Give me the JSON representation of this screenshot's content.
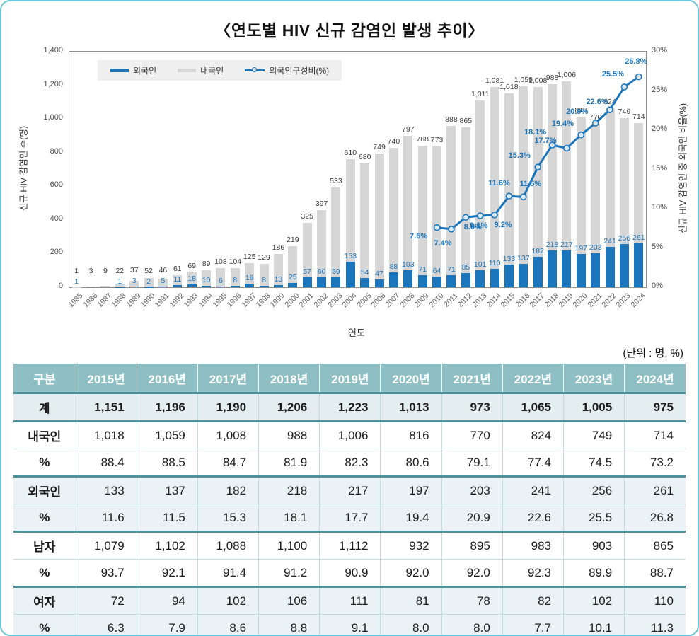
{
  "page": {
    "title": "〈연도별 HIV 신규 감염인 발생 추이〉",
    "unit_note": "(단위 : 명, %)"
  },
  "chart_data": {
    "type": "bar",
    "subtype": "stacked-bar-with-line",
    "title": "〈연도별 HIV 신규 감염인 발생 추이〉",
    "xlabel": "연도",
    "ylabel_left": "신규 HIV 감염인 수(명)",
    "ylabel_right": "신규 HIV 감염인 중 외국인 비율(%)",
    "ylim_left": [
      0,
      1400
    ],
    "ylim_right_pct": [
      0,
      30
    ],
    "yticks_left": [
      0,
      200,
      400,
      600,
      800,
      1000,
      1200,
      1400
    ],
    "yticks_right_pct": [
      0,
      5,
      10,
      15,
      20,
      25,
      30
    ],
    "grid": false,
    "legend": [
      "외국인",
      "내국인",
      "외국인구성비(%)"
    ],
    "legend_position": "top-left-inside",
    "categories": [
      "1985",
      "1986",
      "1987",
      "1988",
      "1989",
      "1990",
      "1991",
      "1992",
      "1993",
      "1994",
      "1995",
      "1996",
      "1997",
      "1998",
      "1999",
      "2000",
      "2001",
      "2002",
      "2003",
      "2004",
      "2005",
      "2006",
      "2007",
      "2008",
      "2009",
      "2010",
      "2011",
      "2012",
      "2013",
      "2014",
      "2015",
      "2016",
      "2017",
      "2018",
      "2019",
      "2020",
      "2021",
      "2022",
      "2023",
      "2024"
    ],
    "series": [
      {
        "name": "외국인",
        "type": "bar",
        "stack_order": 0,
        "color": "#1b75bb",
        "values": [
          1,
          null,
          null,
          1,
          3,
          2,
          5,
          11,
          18,
          10,
          6,
          8,
          19,
          8,
          13,
          25,
          57,
          60,
          59,
          153,
          54,
          47,
          88,
          103,
          71,
          64,
          71,
          85,
          101,
          110,
          133,
          137,
          182,
          218,
          217,
          197,
          203,
          241,
          256,
          261
        ]
      },
      {
        "name": "내국인",
        "type": "bar",
        "stack_order": 1,
        "color": "#d6d6d6",
        "values": [
          1,
          3,
          9,
          22,
          37,
          52,
          46,
          61,
          69,
          89,
          108,
          104,
          125,
          129,
          186,
          219,
          325,
          397,
          533,
          610,
          680,
          749,
          740,
          797,
          768,
          773,
          888,
          865,
          1011,
          1081,
          1018,
          1059,
          1008,
          988,
          1006,
          816,
          770,
          824,
          749,
          714
        ]
      },
      {
        "name": "외국인구성비(%)",
        "type": "line",
        "axis": "right",
        "color": "#1b75bb",
        "values": [
          null,
          null,
          null,
          null,
          null,
          null,
          null,
          null,
          null,
          null,
          null,
          null,
          null,
          null,
          null,
          null,
          null,
          null,
          null,
          null,
          null,
          null,
          null,
          null,
          null,
          7.6,
          7.4,
          8.9,
          9.1,
          9.2,
          11.6,
          11.5,
          15.3,
          18.1,
          17.7,
          19.4,
          20.9,
          22.6,
          25.5,
          26.8
        ]
      }
    ]
  },
  "table": {
    "columns": [
      "구분",
      "2015년",
      "2016년",
      "2017년",
      "2018년",
      "2019년",
      "2020년",
      "2021년",
      "2022년",
      "2023년",
      "2024년"
    ],
    "rows": [
      {
        "label": "계",
        "values": [
          "1,151",
          "1,196",
          "1,190",
          "1,206",
          "1,223",
          "1,013",
          "973",
          "1,065",
          "1,005",
          "975"
        ]
      },
      {
        "label": "내국인",
        "values": [
          "1,018",
          "1,059",
          "1,008",
          "988",
          "1,006",
          "816",
          "770",
          "824",
          "749",
          "714"
        ]
      },
      {
        "label": "%",
        "values": [
          "88.4",
          "88.5",
          "84.7",
          "81.9",
          "82.3",
          "80.6",
          "79.1",
          "77.4",
          "74.5",
          "73.2"
        ]
      },
      {
        "label": "외국인",
        "values": [
          "133",
          "137",
          "182",
          "218",
          "217",
          "197",
          "203",
          "241",
          "256",
          "261"
        ]
      },
      {
        "label": "%",
        "values": [
          "11.6",
          "11.5",
          "15.3",
          "18.1",
          "17.7",
          "19.4",
          "20.9",
          "22.6",
          "25.5",
          "26.8"
        ]
      },
      {
        "label": "남자",
        "values": [
          "1,079",
          "1,102",
          "1,088",
          "1,100",
          "1,112",
          "932",
          "895",
          "983",
          "903",
          "865"
        ]
      },
      {
        "label": "%",
        "values": [
          "93.7",
          "92.1",
          "91.4",
          "91.2",
          "90.9",
          "92.0",
          "92.0",
          "92.3",
          "89.9",
          "88.7"
        ]
      },
      {
        "label": "여자",
        "values": [
          "72",
          "94",
          "102",
          "106",
          "111",
          "81",
          "78",
          "82",
          "102",
          "110"
        ]
      },
      {
        "label": "%",
        "values": [
          "6.3",
          "7.9",
          "8.6",
          "8.8",
          "9.1",
          "8.0",
          "8.0",
          "7.7",
          "10.1",
          "11.3"
        ]
      }
    ]
  },
  "colors": {
    "bar_foreign": "#1b75bb",
    "bar_korean": "#d6d6d6",
    "ratio_line": "#1b75bb",
    "marker_fill": "#d9e8f7",
    "table_header_bg": "#8ebfc4",
    "table_shade_row": "#eaf2f5",
    "table_total_row": "#e4edf0",
    "table_rule_dark": "#4e929c",
    "frame_border": "#6fc4d4"
  }
}
